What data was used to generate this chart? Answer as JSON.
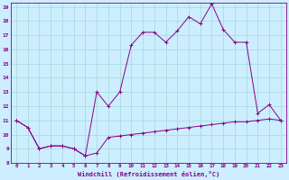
{
  "xlabel": "Windchill (Refroidissement éolien,°C)",
  "background_color": "#cceeff",
  "grid_color": "#aadddd",
  "line_color": "#880088",
  "x_line1": [
    0,
    1,
    2,
    3,
    4,
    5,
    6,
    7,
    8,
    9,
    10,
    11,
    12,
    13,
    14,
    15,
    16,
    17,
    18,
    19,
    20,
    21,
    22,
    23
  ],
  "y_line1": [
    11.0,
    10.5,
    9.0,
    9.2,
    9.2,
    9.0,
    8.5,
    8.7,
    9.8,
    9.9,
    10.0,
    10.1,
    10.2,
    10.3,
    10.4,
    10.5,
    10.6,
    10.7,
    10.8,
    10.9,
    10.9,
    11.0,
    11.1,
    11.0
  ],
  "x_line2": [
    0,
    1,
    2,
    3,
    4,
    5,
    6,
    7,
    8,
    9,
    10,
    11,
    12,
    13,
    14,
    15,
    16,
    17,
    18,
    19,
    20,
    21,
    22,
    23
  ],
  "y_line2": [
    11.0,
    10.5,
    9.0,
    9.2,
    9.2,
    9.0,
    8.5,
    13.0,
    12.0,
    13.0,
    16.3,
    17.2,
    17.2,
    16.5,
    17.3,
    18.3,
    17.8,
    19.2,
    17.4,
    16.5,
    16.5,
    11.5,
    12.1,
    11.0
  ],
  "xlim": [
    -0.5,
    23.5
  ],
  "ylim": [
    8,
    19.3
  ],
  "yticks": [
    8,
    9,
    10,
    11,
    12,
    13,
    14,
    15,
    16,
    17,
    18,
    19
  ],
  "xticks": [
    0,
    1,
    2,
    3,
    4,
    5,
    6,
    7,
    8,
    9,
    10,
    11,
    12,
    13,
    14,
    15,
    16,
    17,
    18,
    19,
    20,
    21,
    22,
    23
  ]
}
